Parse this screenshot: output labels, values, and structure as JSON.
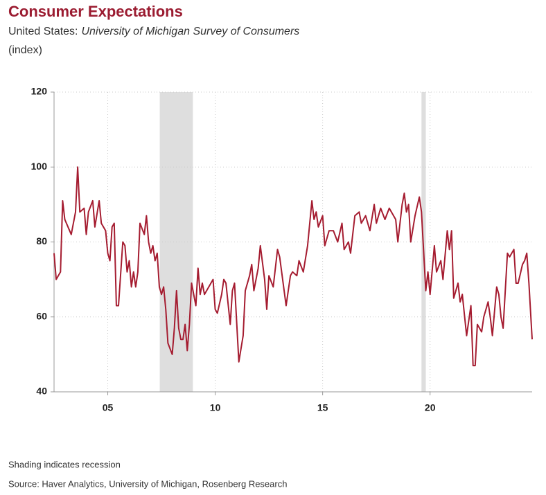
{
  "chart_data": {
    "type": "line",
    "title": "Consumer Expectations",
    "subtitle": {
      "region": "United States:",
      "source": "University of Michigan Survey of Consumers"
    },
    "y_label": "(index)",
    "notes": [
      "Shading indicates recession",
      "Source: Haver Analytics, University of Michigan, Rosenberg Research"
    ],
    "color": "#a51c30",
    "recession_color": "#dedede",
    "recessions": [
      [
        2007.92,
        2009.46
      ],
      [
        2020.1,
        2020.3
      ]
    ],
    "grid": true,
    "xlim": [
      2003,
      2025.25
    ],
    "ylim": [
      40,
      120
    ],
    "yticks": [
      40,
      60,
      80,
      100,
      120
    ],
    "xticks": [
      {
        "value": 2005.5,
        "label": "05"
      },
      {
        "value": 2010.5,
        "label": "10"
      },
      {
        "value": 2015.5,
        "label": "15"
      },
      {
        "value": 2020.5,
        "label": "20"
      }
    ],
    "x": [
      2003.0,
      2003.1,
      2003.3,
      2003.4,
      2003.5,
      2003.8,
      2004.0,
      2004.1,
      2004.2,
      2004.4,
      2004.5,
      2004.6,
      2004.8,
      2004.9,
      2005.1,
      2005.2,
      2005.4,
      2005.5,
      2005.6,
      2005.7,
      2005.8,
      2005.9,
      2006.0,
      2006.2,
      2006.3,
      2006.4,
      2006.5,
      2006.6,
      2006.7,
      2006.8,
      2006.9,
      2007.0,
      2007.2,
      2007.3,
      2007.4,
      2007.5,
      2007.6,
      2007.7,
      2007.8,
      2007.9,
      2008.0,
      2008.1,
      2008.2,
      2008.3,
      2008.5,
      2008.6,
      2008.7,
      2008.8,
      2008.9,
      2009.0,
      2009.1,
      2009.2,
      2009.3,
      2009.4,
      2009.6,
      2009.7,
      2009.8,
      2009.9,
      2010.0,
      2010.2,
      2010.4,
      2010.5,
      2010.6,
      2010.8,
      2010.9,
      2011.0,
      2011.2,
      2011.3,
      2011.4,
      2011.6,
      2011.8,
      2011.9,
      2012.1,
      2012.2,
      2012.3,
      2012.5,
      2012.6,
      2012.8,
      2012.9,
      2013.0,
      2013.2,
      2013.4,
      2013.5,
      2013.8,
      2014.0,
      2014.1,
      2014.3,
      2014.4,
      2014.6,
      2014.8,
      2015.0,
      2015.1,
      2015.2,
      2015.3,
      2015.5,
      2015.6,
      2015.8,
      2016.0,
      2016.2,
      2016.4,
      2016.5,
      2016.7,
      2016.8,
      2017.0,
      2017.2,
      2017.3,
      2017.5,
      2017.7,
      2017.9,
      2018.0,
      2018.2,
      2018.4,
      2018.6,
      2018.9,
      2019.0,
      2019.2,
      2019.3,
      2019.4,
      2019.5,
      2019.6,
      2019.8,
      2020.0,
      2020.1,
      2020.3,
      2020.4,
      2020.5,
      2020.7,
      2020.8,
      2021.0,
      2021.1,
      2021.3,
      2021.4,
      2021.5,
      2021.6,
      2021.8,
      2021.9,
      2022.0,
      2022.2,
      2022.4,
      2022.5,
      2022.6,
      2022.7,
      2022.9,
      2023.0,
      2023.2,
      2023.3,
      2023.4,
      2023.6,
      2023.7,
      2023.8,
      2023.9,
      2024.1,
      2024.2,
      2024.4,
      2024.5,
      2024.6,
      2024.8,
      2024.9,
      2025.0,
      2025.1,
      2025.25
    ],
    "values": [
      77,
      70,
      72,
      91,
      86,
      82,
      88,
      100,
      88,
      89,
      82,
      88,
      91,
      84,
      91,
      85,
      83,
      77,
      75,
      84,
      85,
      63,
      63,
      80,
      79,
      72,
      75,
      68,
      72,
      68,
      72,
      85,
      82,
      87,
      80,
      77,
      79,
      75,
      77,
      68,
      66,
      68,
      62,
      53,
      50,
      57,
      67,
      57,
      54,
      54,
      58,
      51,
      58,
      69,
      63,
      73,
      66,
      69,
      66,
      68,
      70,
      62,
      61,
      66,
      70,
      69,
      58,
      67,
      69,
      48,
      55,
      67,
      71,
      74,
      67,
      73,
      79,
      70,
      62,
      71,
      68,
      78,
      76,
      63,
      71,
      72,
      71,
      75,
      72,
      79,
      91,
      86,
      88,
      84,
      87,
      79,
      83,
      83,
      80,
      85,
      78,
      80,
      77,
      87,
      88,
      85,
      87,
      83,
      90,
      85,
      89,
      86,
      89,
      86,
      80,
      90,
      93,
      88,
      90,
      80,
      87,
      92,
      88,
      67,
      72,
      66,
      79,
      72,
      75,
      70,
      83,
      78,
      83,
      65,
      69,
      64,
      66,
      55,
      63,
      47,
      47,
      58,
      56,
      60,
      64,
      60,
      55,
      68,
      66,
      60,
      57,
      77,
      76,
      78,
      69,
      69,
      74,
      75,
      77,
      69,
      54
    ]
  }
}
